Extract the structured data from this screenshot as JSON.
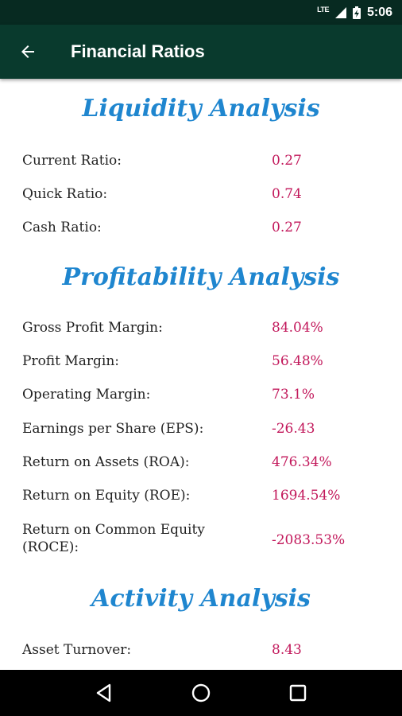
{
  "status_bar": {
    "network": "LTE",
    "time": "5:06"
  },
  "app_bar": {
    "title": "Financial Ratios",
    "back_icon": "arrow-left"
  },
  "sections": [
    {
      "heading": "Liquidity Analysis",
      "rows": [
        {
          "label": "Current Ratio:",
          "value": "0.27"
        },
        {
          "label": "Quick Ratio:",
          "value": "0.74"
        },
        {
          "label": "Cash Ratio:",
          "value": "0.27"
        }
      ]
    },
    {
      "heading": "Profitability Analysis",
      "rows": [
        {
          "label": "Gross Profit Margin:",
          "value": "84.04%"
        },
        {
          "label": "Profit Margin:",
          "value": "56.48%"
        },
        {
          "label": "Operating Margin:",
          "value": "73.1%"
        },
        {
          "label": "Earnings per Share (EPS):",
          "value": "-26.43"
        },
        {
          "label": "Return on Assets (ROA):",
          "value": "476.34%"
        },
        {
          "label": "Return on Equity (ROE):",
          "value": "1694.54%"
        },
        {
          "label": "Return on Common Equity\n(ROCE):",
          "value": "-2083.53%"
        }
      ]
    },
    {
      "heading": "Activity Analysis",
      "rows": [
        {
          "label": "Asset Turnover:",
          "value": "8.43"
        }
      ]
    }
  ],
  "colors": {
    "status_bar": "#072a21",
    "app_bar": "#093a2d",
    "heading": "#1f86cf",
    "value": "#c2185b"
  },
  "nav_bar": {
    "icons": [
      "back-triangle",
      "home-circle",
      "recents-square"
    ]
  }
}
